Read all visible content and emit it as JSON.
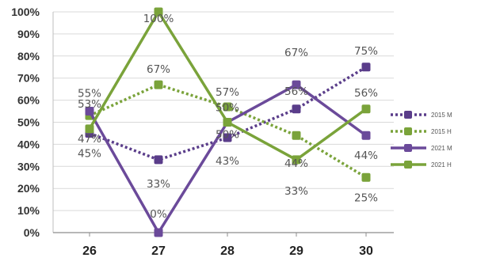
{
  "chart_data": {
    "type": "line",
    "categories": [
      "26",
      "27",
      "28",
      "29",
      "30"
    ],
    "y_ticks": [
      "0%",
      "10%",
      "20%",
      "30%",
      "40%",
      "50%",
      "60%",
      "70%",
      "80%",
      "90%",
      "100%"
    ],
    "ylim": [
      0,
      100
    ],
    "grid": true,
    "legend_position": "right",
    "series": [
      {
        "name": "2015 M",
        "values": [
          45,
          33,
          43,
          56,
          75
        ],
        "labels": [
          "45%",
          "33%",
          "43%",
          "56%",
          "75%"
        ],
        "color": "#5a3d8a",
        "dashed": true
      },
      {
        "name": "2015 H",
        "values": [
          53,
          67,
          57,
          44,
          25
        ],
        "labels": [
          "53%",
          "67%",
          "57%",
          "44%",
          "25%"
        ],
        "color": "#7aa33a",
        "dashed": true
      },
      {
        "name": "2021 M",
        "values": [
          55,
          0,
          50,
          67,
          44
        ],
        "labels": [
          "55%",
          "0%",
          "50%",
          "67%",
          "44%"
        ],
        "color": "#6b4a9a",
        "dashed": false
      },
      {
        "name": "2021 H",
        "values": [
          47,
          100,
          50,
          33,
          56
        ],
        "labels": [
          "47%",
          "100%",
          "50%",
          "33%",
          "56%"
        ],
        "color": "#7aa33a",
        "dashed": false
      }
    ]
  }
}
